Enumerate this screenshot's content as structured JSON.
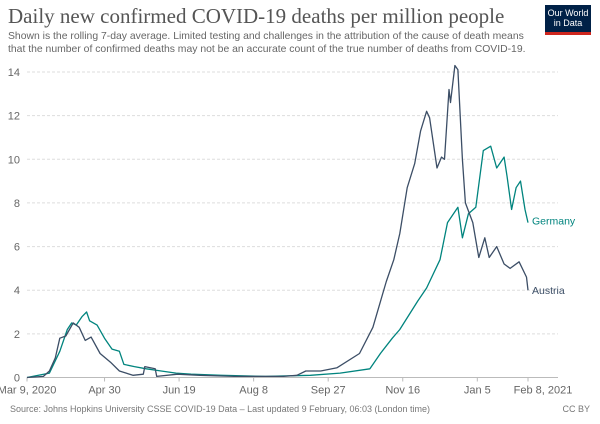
{
  "header": {
    "title": "Daily new confirmed COVID-19 deaths per million people",
    "subtitle_line1": "Shown is the rolling 7-day average. Limited testing and challenges in the attribution of the cause of death means",
    "subtitle_line2": "that the number of confirmed deaths may not be an accurate count of the true number of deaths from COVID-19.",
    "logo_line1": "Our World",
    "logo_line2": "in Data"
  },
  "footer": {
    "source": "Source: Johns Hopkins University CSSE COVID-19 Data – Last updated 9 February, 06:03 (London time)",
    "license": "CC BY"
  },
  "chart_data": {
    "type": "line",
    "title": "Daily new confirmed COVID-19 deaths per million people",
    "xlabel": "",
    "ylabel": "",
    "x_unit": "days since Mar 9, 2020",
    "xlim": [
      0,
      336
    ],
    "ylim": [
      0,
      14
    ],
    "yticks": [
      0,
      2,
      4,
      6,
      8,
      10,
      12,
      14
    ],
    "xticks": [
      {
        "day": 0,
        "label": "Mar 9, 2020"
      },
      {
        "day": 52,
        "label": "Apr 30"
      },
      {
        "day": 102,
        "label": "Jun 19"
      },
      {
        "day": 152,
        "label": "Aug 8"
      },
      {
        "day": 202,
        "label": "Sep 27"
      },
      {
        "day": 252,
        "label": "Nov 16"
      },
      {
        "day": 302,
        "label": "Jan 5"
      },
      {
        "day": 336,
        "label": "Feb 8, 2021"
      }
    ],
    "grid": "horizontal dashed",
    "legend": "line-end labels, right",
    "series": [
      {
        "name": "Germany",
        "color": "#00847e",
        "points": [
          [
            0,
            0
          ],
          [
            15,
            0.2
          ],
          [
            22,
            1.2
          ],
          [
            27,
            2.2
          ],
          [
            30,
            2.5
          ],
          [
            33,
            2.4
          ],
          [
            37,
            2.8
          ],
          [
            40,
            3.0
          ],
          [
            42,
            2.6
          ],
          [
            47,
            2.4
          ],
          [
            52,
            1.8
          ],
          [
            57,
            1.3
          ],
          [
            62,
            1.2
          ],
          [
            65,
            0.6
          ],
          [
            72,
            0.5
          ],
          [
            80,
            0.4
          ],
          [
            90,
            0.3
          ],
          [
            100,
            0.2
          ],
          [
            110,
            0.15
          ],
          [
            130,
            0.1
          ],
          [
            160,
            0.05
          ],
          [
            190,
            0.1
          ],
          [
            210,
            0.2
          ],
          [
            230,
            0.4
          ],
          [
            237,
            1.1
          ],
          [
            245,
            1.8
          ],
          [
            250,
            2.2
          ],
          [
            262,
            3.5
          ],
          [
            268,
            4.1
          ],
          [
            277,
            5.4
          ],
          [
            282,
            7.1
          ],
          [
            289,
            7.8
          ],
          [
            292,
            6.4
          ],
          [
            296,
            7.5
          ],
          [
            301,
            7.8
          ],
          [
            306,
            10.4
          ],
          [
            311,
            10.6
          ],
          [
            315,
            9.6
          ],
          [
            320,
            10.1
          ],
          [
            322,
            9.2
          ],
          [
            325,
            7.7
          ],
          [
            328,
            8.7
          ],
          [
            331,
            9.0
          ],
          [
            334,
            7.7
          ],
          [
            336,
            7.1
          ]
        ]
      },
      {
        "name": "Austria",
        "color": "#3c4e66",
        "points": [
          [
            0,
            0
          ],
          [
            11,
            0.05
          ],
          [
            15,
            0.3
          ],
          [
            19,
            0.9
          ],
          [
            22,
            1.8
          ],
          [
            26,
            1.9
          ],
          [
            31,
            2.5
          ],
          [
            35,
            2.3
          ],
          [
            39,
            1.7
          ],
          [
            43,
            1.85
          ],
          [
            49,
            1.1
          ],
          [
            56,
            0.7
          ],
          [
            62,
            0.3
          ],
          [
            71,
            0.1
          ],
          [
            78,
            0.15
          ],
          [
            79,
            0.5
          ],
          [
            86,
            0.4
          ],
          [
            87,
            0.05
          ],
          [
            101,
            0.15
          ],
          [
            116,
            0.1
          ],
          [
            139,
            0.05
          ],
          [
            172,
            0.05
          ],
          [
            181,
            0.1
          ],
          [
            187,
            0.3
          ],
          [
            197,
            0.3
          ],
          [
            208,
            0.45
          ],
          [
            223,
            1.1
          ],
          [
            232,
            2.3
          ],
          [
            241,
            4.4
          ],
          [
            246,
            5.4
          ],
          [
            250,
            6.6
          ],
          [
            255,
            8.7
          ],
          [
            260,
            9.8
          ],
          [
            264,
            11.3
          ],
          [
            268,
            12.2
          ],
          [
            270,
            11.9
          ],
          [
            275,
            9.6
          ],
          [
            278,
            10.1
          ],
          [
            280,
            10.0
          ],
          [
            283,
            13.2
          ],
          [
            284,
            12.6
          ],
          [
            287,
            14.3
          ],
          [
            289,
            14.1
          ],
          [
            292,
            10.0
          ],
          [
            294,
            8.0
          ],
          [
            299,
            7.1
          ],
          [
            303,
            5.5
          ],
          [
            307,
            6.4
          ],
          [
            310,
            5.5
          ],
          [
            315,
            6.0
          ],
          [
            320,
            5.2
          ],
          [
            324,
            5.0
          ],
          [
            330,
            5.3
          ],
          [
            335,
            4.6
          ],
          [
            336,
            4.0
          ]
        ]
      }
    ]
  }
}
